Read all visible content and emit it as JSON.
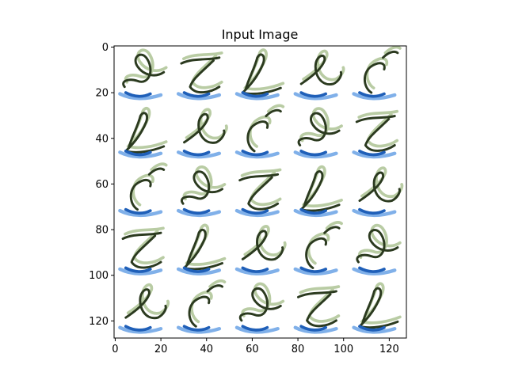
{
  "title": "Input Image",
  "axes": {
    "x_ticks": [
      0,
      20,
      40,
      60,
      80,
      100,
      120
    ],
    "y_ticks": [
      0,
      20,
      40,
      60,
      80,
      100,
      120
    ],
    "x_range": [
      -0.5,
      127.5
    ],
    "y_range": [
      127.5,
      -0.5
    ]
  },
  "image": {
    "grid_rows": 5,
    "grid_cols": 5,
    "stroke_colors": [
      "#2b3a1f",
      "#1f5fb8",
      "#4a8fe0",
      "#7fa35a"
    ],
    "glyph_icons": [
      [
        "script-q-icon",
        "script-z-icon",
        "script-l-icon",
        "script-e-icon",
        "script-c-icon"
      ],
      [
        "script-f-icon",
        "script-y-icon",
        "script-g-icon",
        "script-j-icon",
        "script-j-icon"
      ],
      [
        "script-r-icon",
        "script-l-icon",
        "script-m-icon",
        "script-n-icon",
        "script-o-icon"
      ],
      [
        "script-t-icon",
        "script-r-icon",
        "script-k-icon",
        "script-s-icon",
        "script-t-icon"
      ],
      [
        "script-u-icon",
        "script-b-icon",
        "script-x-icon",
        "script-e-icon",
        "script-y-icon"
      ]
    ]
  }
}
